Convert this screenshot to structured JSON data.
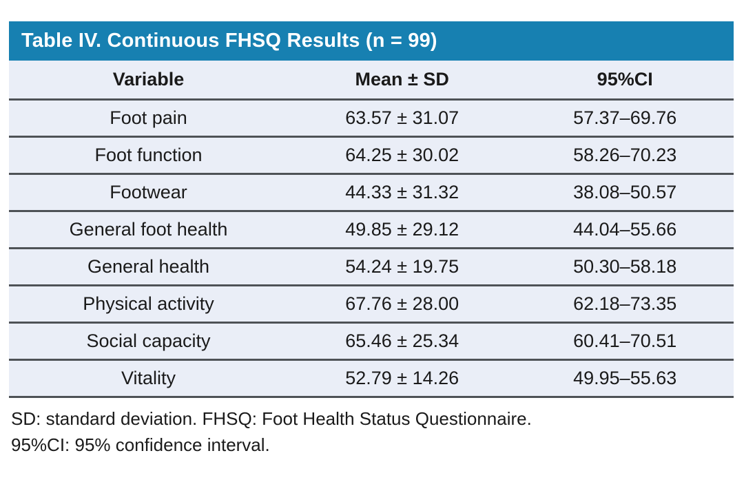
{
  "table": {
    "title": "Table IV. Continuous FHSQ Results (n = 99)",
    "columns": [
      {
        "label": "Variable"
      },
      {
        "label": "Mean ± SD"
      },
      {
        "label": "95%CI"
      }
    ],
    "rows": [
      {
        "variable": "Foot pain",
        "mean_sd": "63.57 ± 31.07",
        "ci95": "57.37–69.76"
      },
      {
        "variable": "Foot function",
        "mean_sd": "64.25 ± 30.02",
        "ci95": "58.26–70.23"
      },
      {
        "variable": "Footwear",
        "mean_sd": "44.33 ± 31.32",
        "ci95": "38.08–50.57"
      },
      {
        "variable": "General foot health",
        "mean_sd": "49.85 ± 29.12",
        "ci95": "44.04–55.66"
      },
      {
        "variable": "General health",
        "mean_sd": "54.24 ± 19.75",
        "ci95": "50.30–58.18"
      },
      {
        "variable": "Physical activity",
        "mean_sd": "67.76 ± 28.00",
        "ci95": "62.18–73.35"
      },
      {
        "variable": "Social capacity",
        "mean_sd": "65.46 ± 25.34",
        "ci95": "60.41–70.51"
      },
      {
        "variable": "Vitality",
        "mean_sd": "52.79 ± 14.26",
        "ci95": "49.95–55.63"
      }
    ],
    "footnotes": [
      "SD: standard deviation. FHSQ: Foot Health Status Questionnaire.",
      "95%CI: 95% confidence interval."
    ],
    "colors": {
      "header_bar": "#1780b1",
      "row_bg": "#eaeef7",
      "divider": "#4e5256",
      "text": "#1a1a1a",
      "title_text": "#ffffff"
    }
  }
}
